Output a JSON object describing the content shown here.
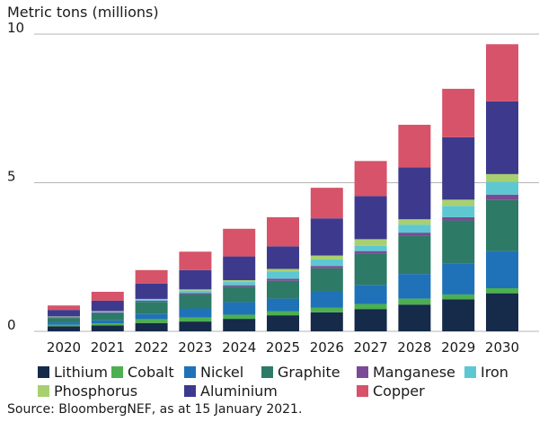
{
  "chart_data": {
    "type": "bar",
    "stacked": true,
    "ylabel": "Metric tons (millions)",
    "ylim": [
      0,
      10
    ],
    "yticks": [
      0,
      5,
      10
    ],
    "grid": true,
    "legend_position": "bottom",
    "categories": [
      "2020",
      "2021",
      "2022",
      "2023",
      "2024",
      "2025",
      "2026",
      "2027",
      "2028",
      "2029",
      "2030"
    ],
    "series": [
      {
        "name": "Lithium",
        "color": "#162a4a",
        "values": [
          0.17,
          0.2,
          0.28,
          0.33,
          0.42,
          0.54,
          0.64,
          0.75,
          0.9,
          1.08,
          1.28
        ]
      },
      {
        "name": "Cobalt",
        "color": "#4cb050",
        "values": [
          0.05,
          0.07,
          0.13,
          0.14,
          0.14,
          0.14,
          0.15,
          0.17,
          0.2,
          0.16,
          0.17
        ]
      },
      {
        "name": "Nickel",
        "color": "#1f72b8",
        "values": [
          0.08,
          0.1,
          0.17,
          0.3,
          0.42,
          0.42,
          0.57,
          0.64,
          0.83,
          1.03,
          1.25
        ]
      },
      {
        "name": "Graphite",
        "color": "#2d7a66",
        "values": [
          0.15,
          0.24,
          0.41,
          0.47,
          0.52,
          0.6,
          0.76,
          1.05,
          1.29,
          1.46,
          1.72
        ]
      },
      {
        "name": "Manganese",
        "color": "#7b4a96",
        "values": [
          0.02,
          0.03,
          0.04,
          0.05,
          0.05,
          0.07,
          0.08,
          0.09,
          0.1,
          0.11,
          0.18
        ]
      },
      {
        "name": "Iron",
        "color": "#5dc8d2",
        "values": [
          0.02,
          0.03,
          0.04,
          0.08,
          0.11,
          0.25,
          0.22,
          0.18,
          0.27,
          0.38,
          0.43
        ]
      },
      {
        "name": "Phosphorus",
        "color": "#a8d070",
        "values": [
          0.01,
          0.01,
          0.02,
          0.04,
          0.06,
          0.08,
          0.13,
          0.22,
          0.18,
          0.21,
          0.26
        ]
      },
      {
        "name": "Aluminium",
        "color": "#3d3a8e",
        "values": [
          0.22,
          0.35,
          0.52,
          0.65,
          0.8,
          0.76,
          1.25,
          1.45,
          1.75,
          2.1,
          2.45
        ]
      },
      {
        "name": "Copper",
        "color": "#d6536a",
        "values": [
          0.15,
          0.3,
          0.45,
          0.62,
          0.93,
          0.98,
          1.03,
          1.18,
          1.43,
          1.63,
          1.92
        ]
      }
    ]
  },
  "source": "Source: BloombergNEF, as at 15 January 2021."
}
